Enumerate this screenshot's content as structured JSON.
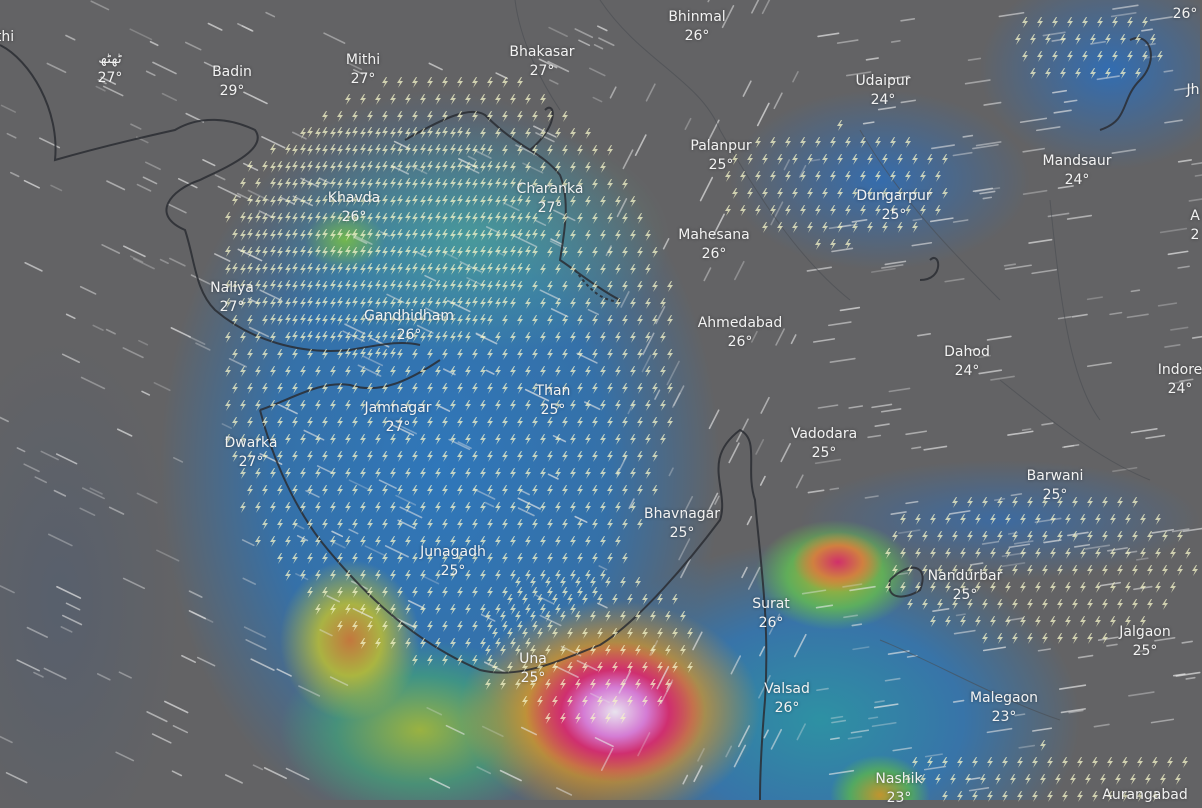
{
  "map": {
    "layer": "thunderstorm / precipitation with wind particles",
    "colors": {
      "land": "#636365",
      "light_rain": "#2f78be",
      "moderate": "#5fb560",
      "heavy": "#d8a030",
      "intense": "#cf2f6f",
      "extreme": "#e9e3ee",
      "lightning": "#f4f4c8"
    },
    "icon_lightning": "lightning-bolt-icon",
    "cities": [
      {
        "name": "thi",
        "temp": ""
      },
      {
        "name": "ٹھٹھ",
        "temp": "27°"
      },
      {
        "name": "Badin",
        "temp": "29°"
      },
      {
        "name": "Mithi",
        "temp": "27°"
      },
      {
        "name": "Bhakasar",
        "temp": "27°"
      },
      {
        "name": "Bhinmal",
        "temp": "26°"
      },
      {
        "name": "",
        "temp": "26°"
      },
      {
        "name": "Udaipur",
        "temp": "24°"
      },
      {
        "name": "Jh",
        "temp": ""
      },
      {
        "name": "Palanpur",
        "temp": "25°"
      },
      {
        "name": "Mandsaur",
        "temp": "24°"
      },
      {
        "name": "A",
        "temp": "2"
      },
      {
        "name": "Khavda",
        "temp": "26°"
      },
      {
        "name": "Charanka",
        "temp": "27°"
      },
      {
        "name": "Dungarpur",
        "temp": "25°"
      },
      {
        "name": "Mahesana",
        "temp": "26°"
      },
      {
        "name": "Naliya",
        "temp": "27°"
      },
      {
        "name": "Gandhidham",
        "temp": "26°"
      },
      {
        "name": "Ahmedabad",
        "temp": "26°"
      },
      {
        "name": "Dahod",
        "temp": "24°"
      },
      {
        "name": "Indore",
        "temp": "24°"
      },
      {
        "name": "Than",
        "temp": "25°"
      },
      {
        "name": "Jamnagar",
        "temp": "27°"
      },
      {
        "name": "Dwarka",
        "temp": "27°"
      },
      {
        "name": "Vadodara",
        "temp": "25°"
      },
      {
        "name": "Barwani",
        "temp": "25°"
      },
      {
        "name": "Bhavnagar",
        "temp": "25°"
      },
      {
        "name": "Junagadh",
        "temp": "25°"
      },
      {
        "name": "Surat",
        "temp": "26°"
      },
      {
        "name": "Nandurbar",
        "temp": "25°"
      },
      {
        "name": "Jalgaon",
        "temp": "25°"
      },
      {
        "name": "Una",
        "temp": "25°"
      },
      {
        "name": "Valsad",
        "temp": "26°"
      },
      {
        "name": "Malegaon",
        "temp": "23°"
      },
      {
        "name": "Nashik",
        "temp": "23°"
      },
      {
        "name": "Aurangabad",
        "temp": ""
      }
    ]
  }
}
